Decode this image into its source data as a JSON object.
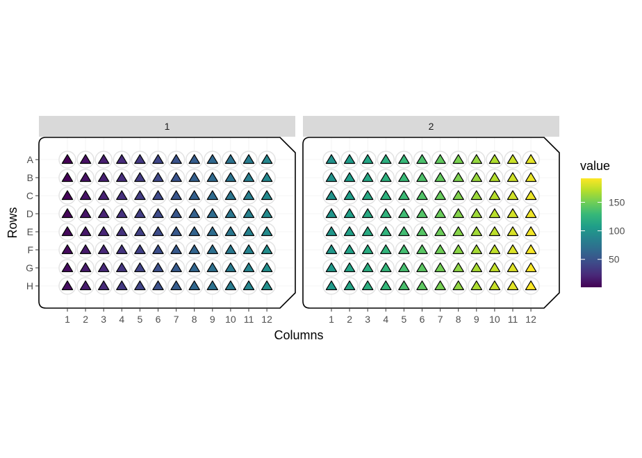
{
  "chart_data": {
    "type": "heatmap",
    "marker": "triangle",
    "facets": [
      {
        "label": "1",
        "value_range": [
          1,
          96
        ]
      },
      {
        "label": "2",
        "value_range": [
          97,
          192
        ]
      }
    ],
    "columns": [
      "1",
      "2",
      "3",
      "4",
      "5",
      "6",
      "7",
      "8",
      "9",
      "10",
      "11",
      "12"
    ],
    "rows": [
      "A",
      "B",
      "C",
      "D",
      "E",
      "F",
      "G",
      "H"
    ],
    "xlabel": "Columns",
    "ylabel": "Rows",
    "value_order": "column-major (A1=first, H1, A2 ... H12)",
    "legend": {
      "title": "value",
      "ticks": [
        50,
        100,
        150
      ],
      "range": [
        1,
        192
      ],
      "placement": "right",
      "colormap": "viridis"
    },
    "grid": true
  }
}
